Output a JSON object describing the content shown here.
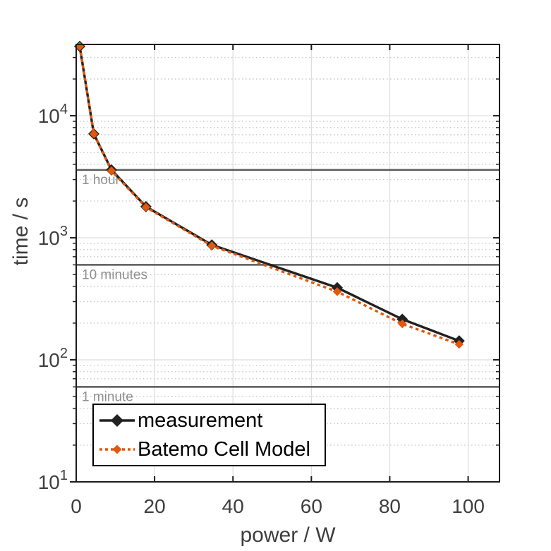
{
  "figure": {
    "background": "#FFFFFF"
  },
  "chart_data": {
    "type": "line",
    "title": "",
    "xlabel": "power / W",
    "ylabel": "time / s",
    "xlim": [
      0,
      108
    ],
    "ylim": [
      10,
      38400
    ],
    "x_scale": "linear",
    "y_scale": "log",
    "x_ticks": [
      0,
      20,
      40,
      60,
      80,
      100
    ],
    "y_ticks": [
      {
        "value": 10,
        "base": "10",
        "exp": "1"
      },
      {
        "value": 100,
        "base": "10",
        "exp": "2"
      },
      {
        "value": 1000,
        "base": "10",
        "exp": "3"
      },
      {
        "value": 10000,
        "base": "10",
        "exp": "4"
      }
    ],
    "grid": {
      "major": true,
      "minor_horizontal_dotted": true
    },
    "legend_position": "lower-left",
    "series": [
      {
        "name": "measurement",
        "color": "#212121",
        "line_style": "solid",
        "marker": "diamond",
        "x": [
          0.9,
          4.5,
          9.0,
          17.8,
          34.6,
          66.6,
          83.2,
          97.7
        ],
        "y": [
          37000,
          7100,
          3600,
          1800,
          875,
          390,
          215,
          143
        ]
      },
      {
        "name": "Batemo Cell Model",
        "color": "#E4570D",
        "line_style": "dotted",
        "marker": "diamond",
        "x": [
          0.9,
          4.5,
          9.0,
          17.8,
          34.6,
          66.6,
          83.2,
          97.7
        ],
        "y": [
          37000,
          7100,
          3540,
          1780,
          860,
          362,
          197,
          134
        ]
      }
    ],
    "reference_lines": [
      {
        "label": "1 hour",
        "value": 3600
      },
      {
        "label": "10 minutes",
        "value": 600
      },
      {
        "label": "1 minute",
        "value": 60
      }
    ]
  },
  "colors": {
    "axis_box": "#1C1C1C",
    "tick_label": "#3E3E3E",
    "grid_major": "#DCDCDC",
    "grid_minor": "#C8C8C8",
    "reference_line": "#5A5A5A",
    "reference_label": "#8F8F8F",
    "legend_border": "#000000",
    "legend_bg": "#FFFFFF"
  }
}
